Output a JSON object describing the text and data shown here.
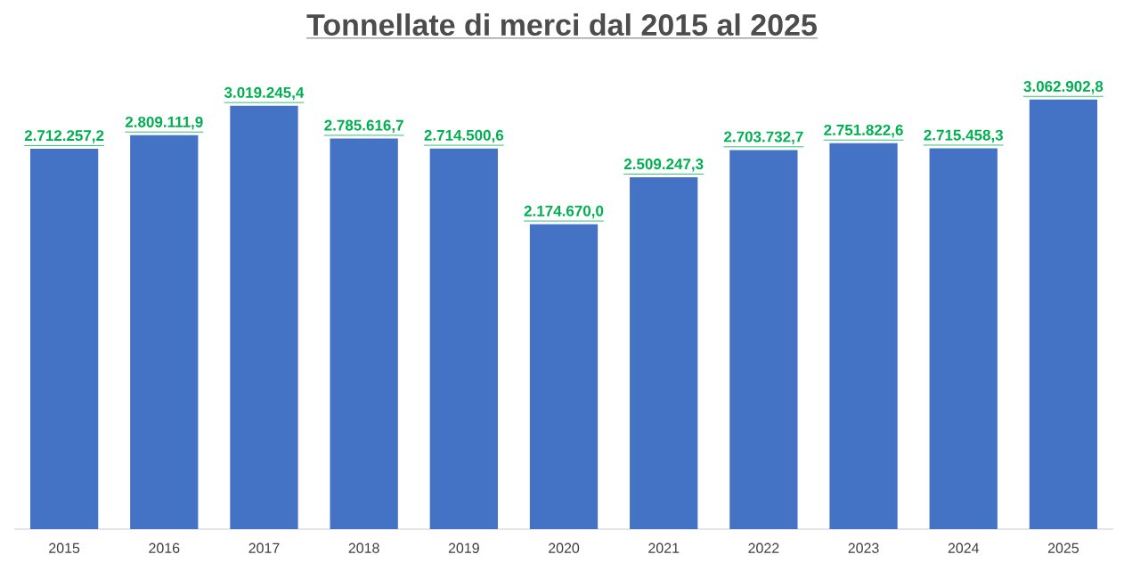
{
  "chart_data": {
    "type": "bar",
    "title": "Tonnellate di merci dal 2015 al 2025",
    "categories": [
      "2015",
      "2016",
      "2017",
      "2018",
      "2019",
      "2020",
      "2021",
      "2022",
      "2023",
      "2024",
      "2025"
    ],
    "values": [
      2712257.2,
      2809111.9,
      3019245.4,
      2785616.7,
      2714500.6,
      2174670.0,
      2509247.3,
      2703732.7,
      2751822.6,
      2715458.3,
      3062902.8
    ],
    "value_labels": [
      "2.712.257,2",
      "2.809.111,9",
      "3.019.245,4",
      "2.785.616,7",
      "2.714.500,6",
      "2.174.670,0",
      "2.509.247,3",
      "2.703.732,7",
      "2.751.822,6",
      "2.715.458,3",
      "3.062.902,8"
    ],
    "color": "#4472c4"
  }
}
